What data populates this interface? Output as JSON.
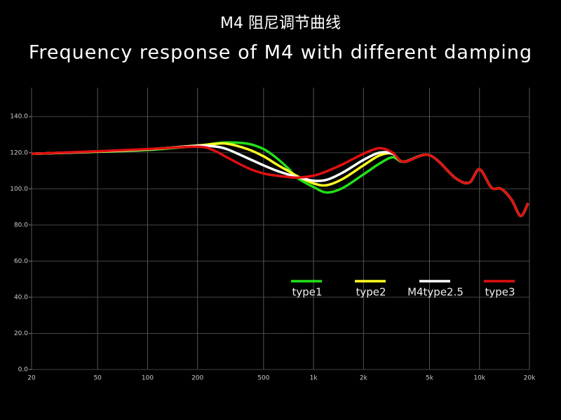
{
  "chart_data": {
    "type": "line",
    "title": "M4  阻尼调节曲线",
    "subtitle": "Frequency response of M4 with different damping",
    "x": [
      20,
      50,
      100,
      200,
      250,
      300,
      400,
      500,
      600,
      700,
      800,
      1000,
      1200,
      1500,
      2000,
      2500,
      3000,
      3500,
      5000,
      7200,
      8700,
      10000,
      11800,
      13500,
      15600,
      17700,
      19600
    ],
    "series": [
      {
        "name": "type1",
        "color": "#22e01a",
        "values": [
          119.4,
          120.5,
          121.5,
          123.8,
          125,
          125.7,
          125,
          122,
          117,
          111.5,
          106,
          101,
          98,
          100.5,
          108,
          114,
          117.5,
          115,
          118.6,
          105.8,
          103.5,
          110.8,
          100.7,
          100,
          94,
          85,
          92
        ]
      },
      {
        "name": "type2",
        "color": "#ffff22",
        "values": [
          119.4,
          120.6,
          121.8,
          124,
          124.8,
          125,
          122,
          118,
          113.5,
          110,
          107,
          103,
          102,
          105.5,
          113,
          118.5,
          119.5,
          115,
          118.6,
          105.8,
          103.5,
          110.8,
          100.7,
          100,
          94,
          85,
          92
        ]
      },
      {
        "name": "M4type2.5",
        "color": "#ffffff",
        "values": [
          119.4,
          120.7,
          121.9,
          123.8,
          123.5,
          122,
          117,
          113,
          110,
          108,
          106.5,
          104.5,
          105,
          109,
          116,
          120,
          119.5,
          115,
          118.6,
          105.8,
          103.5,
          110.8,
          100.7,
          100,
          94,
          85,
          92
        ]
      },
      {
        "name": "type3",
        "color": "#e01010",
        "values": [
          119.4,
          120.8,
          122,
          123.3,
          121.3,
          117.5,
          111.6,
          108.5,
          107.3,
          106.6,
          106.2,
          107.3,
          109.7,
          113.6,
          119.4,
          122.5,
          120,
          115,
          118.6,
          105.8,
          103.5,
          110.8,
          100.7,
          100,
          94,
          85,
          92
        ]
      }
    ],
    "log_x": true,
    "xlim": [
      20,
      20000
    ],
    "ylim": [
      0,
      156
    ],
    "xticks": [
      20,
      50,
      100,
      200,
      500,
      {
        "value": 1000,
        "label": "1k"
      },
      {
        "value": 2000,
        "label": "2k"
      },
      {
        "value": 5000,
        "label": "5k"
      },
      {
        "value": 10000,
        "label": "10k"
      },
      {
        "value": 20000,
        "label": "20k"
      }
    ],
    "yticks": [
      {
        "value": 0,
        "label": "0.0"
      },
      {
        "value": 20,
        "label": "20.0"
      },
      {
        "value": 40,
        "label": "40.0"
      },
      {
        "value": 60,
        "label": "60.0"
      },
      {
        "value": 80,
        "label": "80.0"
      },
      {
        "value": 100,
        "label": "100.0"
      },
      {
        "value": 120,
        "label": "120.0"
      },
      {
        "value": 140,
        "label": "140.0"
      }
    ],
    "grid": true
  }
}
